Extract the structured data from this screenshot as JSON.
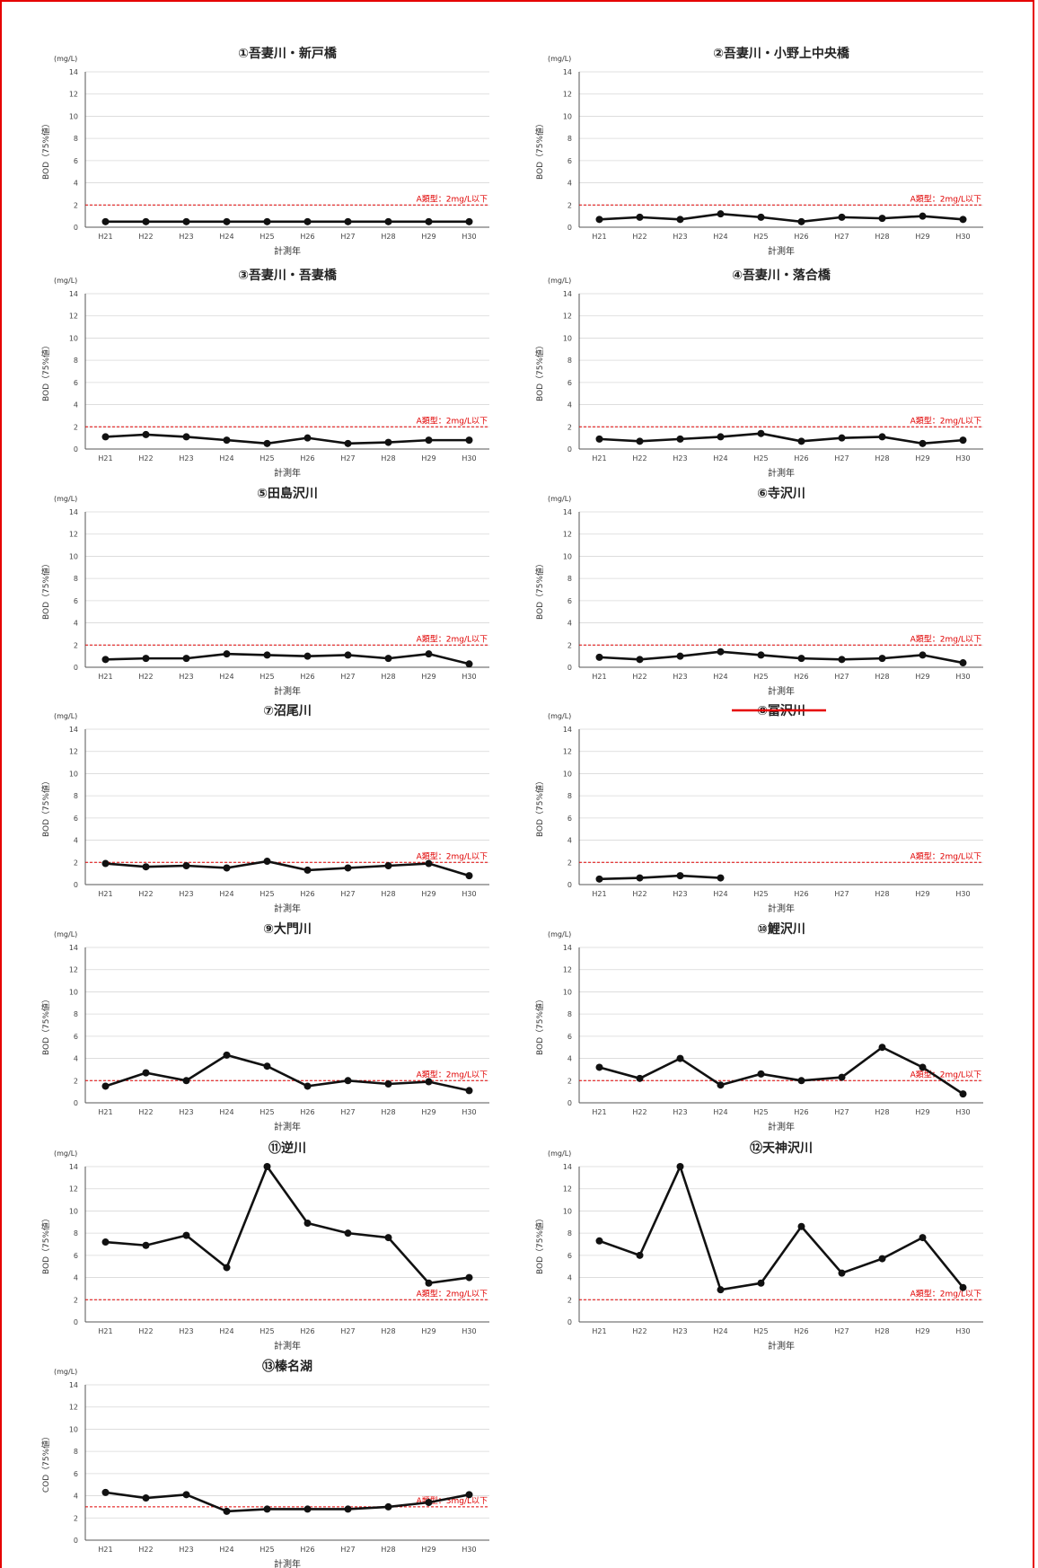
{
  "chart_data": [
    {
      "type": "line",
      "title": "①吾妻川・新戸橋",
      "unit": "(mg/L)",
      "ylabel": "BOD（75%値）",
      "xlabel": "計測年",
      "ylim": [
        0,
        14
      ],
      "yticks": [
        0,
        2,
        4,
        6,
        8,
        10,
        12,
        14
      ],
      "categories": [
        "H21",
        "H22",
        "H23",
        "H24",
        "H25",
        "H26",
        "H27",
        "H28",
        "H29",
        "H30"
      ],
      "values": [
        0.5,
        0.5,
        0.5,
        0.5,
        0.5,
        0.5,
        0.5,
        0.5,
        0.5,
        0.5
      ],
      "standard": {
        "value": 2,
        "label": "A類型：2mg/L以下"
      },
      "strike_title": false
    },
    {
      "type": "line",
      "title": "②吾妻川・小野上中央橋",
      "unit": "(mg/L)",
      "ylabel": "BOD（75%値）",
      "xlabel": "計測年",
      "ylim": [
        0,
        14
      ],
      "yticks": [
        0,
        2,
        4,
        6,
        8,
        10,
        12,
        14
      ],
      "categories": [
        "H21",
        "H22",
        "H23",
        "H24",
        "H25",
        "H26",
        "H27",
        "H28",
        "H29",
        "H30"
      ],
      "values": [
        0.7,
        0.9,
        0.7,
        1.2,
        0.9,
        0.5,
        0.9,
        0.8,
        1.0,
        0.7
      ],
      "standard": {
        "value": 2,
        "label": "A類型：2mg/L以下"
      },
      "strike_title": false
    },
    {
      "type": "line",
      "title": "③吾妻川・吾妻橋",
      "unit": "(mg/L)",
      "ylabel": "BOD（75%値）",
      "xlabel": "計測年",
      "ylim": [
        0,
        14
      ],
      "yticks": [
        0,
        2,
        4,
        6,
        8,
        10,
        12,
        14
      ],
      "categories": [
        "H21",
        "H22",
        "H23",
        "H24",
        "H25",
        "H26",
        "H27",
        "H28",
        "H29",
        "H30"
      ],
      "values": [
        1.1,
        1.3,
        1.1,
        0.8,
        0.5,
        1.0,
        0.5,
        0.6,
        0.8,
        0.8
      ],
      "standard": {
        "value": 2,
        "label": "A類型：2mg/L以下"
      },
      "strike_title": false
    },
    {
      "type": "line",
      "title": "④吾妻川・落合橋",
      "unit": "(mg/L)",
      "ylabel": "BOD（75%値）",
      "xlabel": "計測年",
      "ylim": [
        0,
        14
      ],
      "yticks": [
        0,
        2,
        4,
        6,
        8,
        10,
        12,
        14
      ],
      "categories": [
        "H21",
        "H22",
        "H23",
        "H24",
        "H25",
        "H26",
        "H27",
        "H28",
        "H29",
        "H30"
      ],
      "values": [
        0.9,
        0.7,
        0.9,
        1.1,
        1.4,
        0.7,
        1.0,
        1.1,
        0.5,
        0.8
      ],
      "standard": {
        "value": 2,
        "label": "A類型：2mg/L以下"
      },
      "strike_title": false
    },
    {
      "type": "line",
      "title": "⑤田島沢川",
      "unit": "(mg/L)",
      "ylabel": "BOD（75%値）",
      "xlabel": "計測年",
      "ylim": [
        0,
        14
      ],
      "yticks": [
        0,
        2,
        4,
        6,
        8,
        10,
        12,
        14
      ],
      "categories": [
        "H21",
        "H22",
        "H23",
        "H24",
        "H25",
        "H26",
        "H27",
        "H28",
        "H29",
        "H30"
      ],
      "values": [
        0.7,
        0.8,
        0.8,
        1.2,
        1.1,
        1.0,
        1.1,
        0.8,
        1.2,
        0.3
      ],
      "standard": {
        "value": 2,
        "label": "A類型：2mg/L以下"
      },
      "strike_title": false
    },
    {
      "type": "line",
      "title": "⑥寺沢川",
      "unit": "(mg/L)",
      "ylabel": "BOD（75%値）",
      "xlabel": "計測年",
      "ylim": [
        0,
        14
      ],
      "yticks": [
        0,
        2,
        4,
        6,
        8,
        10,
        12,
        14
      ],
      "categories": [
        "H21",
        "H22",
        "H23",
        "H24",
        "H25",
        "H26",
        "H27",
        "H28",
        "H29",
        "H30"
      ],
      "values": [
        0.9,
        0.7,
        1.0,
        1.4,
        1.1,
        0.8,
        0.7,
        0.8,
        1.1,
        0.4
      ],
      "standard": {
        "value": 2,
        "label": "A類型：2mg/L以下"
      },
      "strike_title": false
    },
    {
      "type": "line",
      "title": "⑦沼尾川",
      "unit": "(mg/L)",
      "ylabel": "BOD（75%値）",
      "xlabel": "計測年",
      "ylim": [
        0,
        14
      ],
      "yticks": [
        0,
        2,
        4,
        6,
        8,
        10,
        12,
        14
      ],
      "categories": [
        "H21",
        "H22",
        "H23",
        "H24",
        "H25",
        "H26",
        "H27",
        "H28",
        "H29",
        "H30"
      ],
      "values": [
        1.9,
        1.6,
        1.7,
        1.5,
        2.1,
        1.3,
        1.5,
        1.7,
        1.9,
        0.8
      ],
      "standard": {
        "value": 2,
        "label": "A類型：2mg/L以下"
      },
      "strike_title": false
    },
    {
      "type": "line",
      "title": "⑧冨沢川",
      "unit": "(mg/L)",
      "ylabel": "BOD（75%値）",
      "xlabel": "計測年",
      "ylim": [
        0,
        14
      ],
      "yticks": [
        0,
        2,
        4,
        6,
        8,
        10,
        12,
        14
      ],
      "categories": [
        "H21",
        "H22",
        "H23",
        "H24",
        "H25",
        "H26",
        "H27",
        "H28",
        "H29",
        "H30"
      ],
      "values": [
        0.5,
        0.6,
        0.8,
        0.6,
        null,
        null,
        null,
        null,
        null,
        null
      ],
      "standard": {
        "value": 2,
        "label": "A類型：2mg/L以下"
      },
      "strike_title": true
    },
    {
      "type": "line",
      "title": "⑨大門川",
      "unit": "(mg/L)",
      "ylabel": "BOD（75%値）",
      "xlabel": "計測年",
      "ylim": [
        0,
        14
      ],
      "yticks": [
        0,
        2,
        4,
        6,
        8,
        10,
        12,
        14
      ],
      "categories": [
        "H21",
        "H22",
        "H23",
        "H24",
        "H25",
        "H26",
        "H27",
        "H28",
        "H29",
        "H30"
      ],
      "values": [
        1.5,
        2.7,
        2.0,
        4.3,
        3.3,
        1.5,
        2.0,
        1.7,
        1.9,
        1.1
      ],
      "standard": {
        "value": 2,
        "label": "A類型：2mg/L以下"
      },
      "strike_title": false
    },
    {
      "type": "line",
      "title": "⑩鯉沢川",
      "unit": "(mg/L)",
      "ylabel": "BOD（75%値）",
      "xlabel": "計測年",
      "ylim": [
        0,
        14
      ],
      "yticks": [
        0,
        2,
        4,
        6,
        8,
        10,
        12,
        14
      ],
      "categories": [
        "H21",
        "H22",
        "H23",
        "H24",
        "H25",
        "H26",
        "H27",
        "H28",
        "H29",
        "H30"
      ],
      "values": [
        3.2,
        2.2,
        4.0,
        1.6,
        2.6,
        2.0,
        2.3,
        5.0,
        3.2,
        0.8
      ],
      "standard": {
        "value": 2,
        "label": "A類型：2mg/L以下"
      },
      "strike_title": false
    },
    {
      "type": "line",
      "title": "⑪逆川",
      "unit": "(mg/L)",
      "ylabel": "BOD（75%値）",
      "xlabel": "計測年",
      "ylim": [
        0,
        14
      ],
      "yticks": [
        0,
        2,
        4,
        6,
        8,
        10,
        12,
        14
      ],
      "categories": [
        "H21",
        "H22",
        "H23",
        "H24",
        "H25",
        "H26",
        "H27",
        "H28",
        "H29",
        "H30"
      ],
      "values": [
        7.2,
        6.9,
        7.8,
        4.9,
        14.0,
        8.9,
        8.0,
        7.6,
        3.5,
        4.0
      ],
      "standard": {
        "value": 2,
        "label": "A類型：2mg/L以下"
      },
      "strike_title": false
    },
    {
      "type": "line",
      "title": "⑫天神沢川",
      "unit": "(mg/L)",
      "ylabel": "BOD（75%値）",
      "xlabel": "計測年",
      "ylim": [
        0,
        14
      ],
      "yticks": [
        0,
        2,
        4,
        6,
        8,
        10,
        12,
        14
      ],
      "categories": [
        "H21",
        "H22",
        "H23",
        "H24",
        "H25",
        "H26",
        "H27",
        "H28",
        "H29",
        "H30"
      ],
      "values": [
        7.3,
        6.0,
        14.0,
        2.9,
        3.5,
        8.6,
        4.4,
        5.7,
        7.6,
        3.1
      ],
      "standard": {
        "value": 2,
        "label": "A類型：2mg/L以下"
      },
      "strike_title": false
    },
    {
      "type": "line",
      "title": "⑬榛名湖",
      "unit": "(mg/L)",
      "ylabel": "COD（75%値）",
      "xlabel": "計測年",
      "ylim": [
        0,
        14
      ],
      "yticks": [
        0,
        2,
        4,
        6,
        8,
        10,
        12,
        14
      ],
      "categories": [
        "H21",
        "H22",
        "H23",
        "H24",
        "H25",
        "H26",
        "H27",
        "H28",
        "H29",
        "H30"
      ],
      "values": [
        4.3,
        3.8,
        4.1,
        2.6,
        2.8,
        2.8,
        2.8,
        3.0,
        3.4,
        4.1
      ],
      "standard": {
        "value": 3,
        "label": "A類型：3mg/L以下"
      },
      "strike_title": false
    }
  ],
  "colors": {
    "frame": "#e60000",
    "series": "#111111",
    "standard": "#e00000",
    "grid": "#d8d8d8"
  }
}
